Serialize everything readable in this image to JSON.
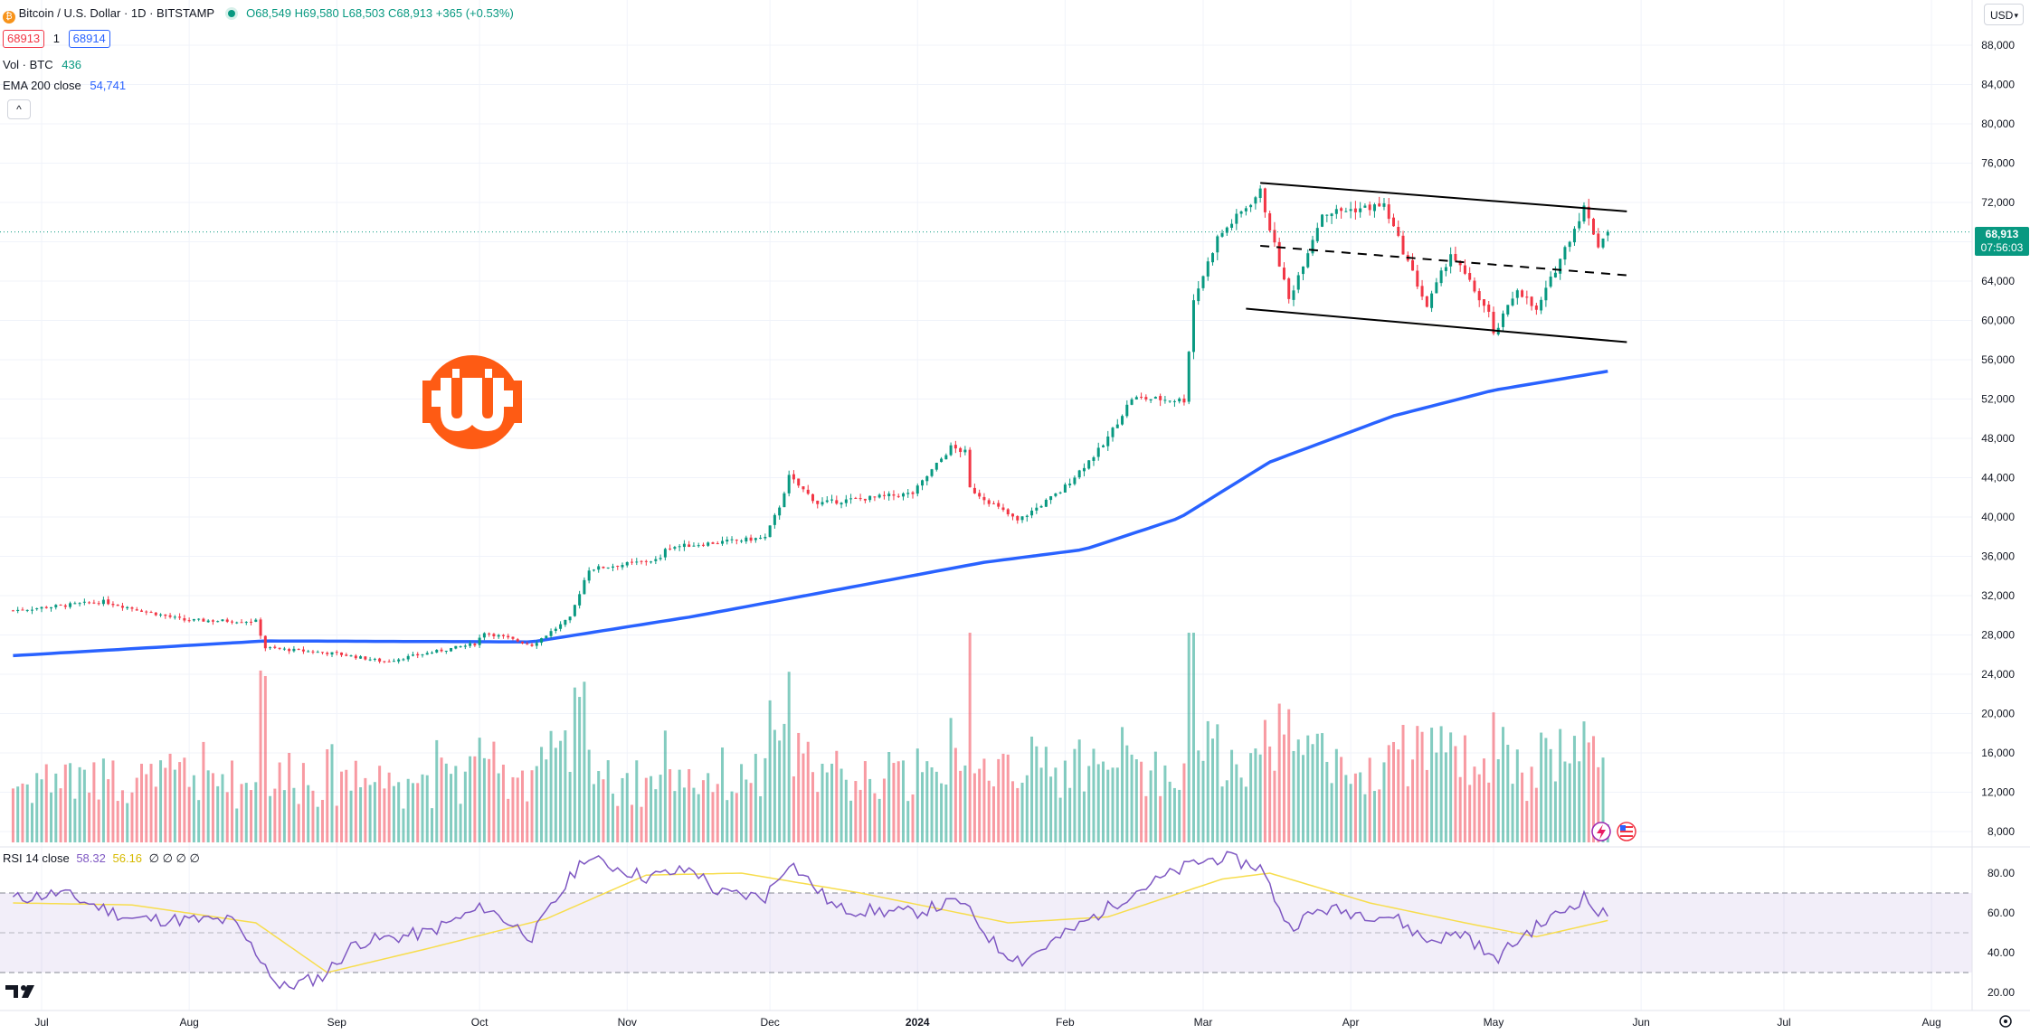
{
  "header": {
    "symbol_title": "Bitcoin / U.S. Dollar · 1D · BITSTAMP",
    "ohlc": {
      "o": "O68,549",
      "h": "H69,580",
      "l": "L68,503",
      "c": "C68,913",
      "change": "+365 (+0.53%)"
    },
    "bid": "68913",
    "spread": "1",
    "ask": "68914",
    "vol_label": "Vol · BTC",
    "vol_value": "436",
    "ema_label": "EMA 200 close",
    "ema_value": "54,741",
    "currency": "USD",
    "collapse_glyph": "^"
  },
  "rsi_legend": {
    "label": "RSI 14 close",
    "rsi_value": "58.32",
    "ma_value": "56.16",
    "extra": "∅ ∅ ∅ ∅"
  },
  "last_price": {
    "price": "68,913",
    "countdown": "07:56:03"
  },
  "colors": {
    "up": "#089981",
    "down": "#f23645",
    "ema": "#2962ff",
    "rsi": "#7e57c2",
    "rsi_ma": "#f7dd4d",
    "brand": "#f7931a",
    "logo": "#fe5b14"
  },
  "chart_data": {
    "type": "candlestick",
    "price_axis": {
      "ticks": [
        "88,000",
        "84,000",
        "80,000",
        "76,000",
        "72,000",
        "68,000",
        "64,000",
        "60,000",
        "56,000",
        "52,000",
        "48,000",
        "44,000",
        "40,000",
        "36,000",
        "32,000",
        "28,000",
        "24,000",
        "20,000",
        "16,000",
        "12,000",
        "8,000"
      ]
    },
    "rsi_axis": {
      "ticks": [
        "80.00",
        "60.00",
        "40.00",
        "20.00"
      ],
      "bands": [
        70,
        50,
        30
      ]
    },
    "time_axis": {
      "labels": [
        "Jul",
        "Aug",
        "Sep",
        "Oct",
        "Nov",
        "Dec",
        "2024",
        "Feb",
        "Mar",
        "Apr",
        "May",
        "Jun",
        "Jul",
        "Aug"
      ],
      "label_dates": [
        "2023-07-01",
        "2023-08-01",
        "2023-09-01",
        "2023-10-01",
        "2023-11-01",
        "2023-12-01",
        "2024-01-01",
        "2024-02-01",
        "2024-03-01",
        "2024-04-01",
        "2024-05-01",
        "2024-06-01",
        "2024-07-01",
        "2024-08-01"
      ]
    },
    "price_anchors": [
      [
        "2023-06-25",
        30400
      ],
      [
        "2023-07-14",
        31300
      ],
      [
        "2023-07-31",
        29400
      ],
      [
        "2023-08-15",
        29300
      ],
      [
        "2023-08-17",
        26600
      ],
      [
        "2023-09-01",
        26000
      ],
      [
        "2023-09-11",
        25200
      ],
      [
        "2023-09-30",
        27000
      ],
      [
        "2023-10-02",
        28200
      ],
      [
        "2023-10-12",
        26900
      ],
      [
        "2023-10-20",
        29600
      ],
      [
        "2023-10-23",
        33500
      ],
      [
        "2023-10-24",
        34600
      ],
      [
        "2023-11-08",
        35600
      ],
      [
        "2023-11-09",
        36800
      ],
      [
        "2023-11-30",
        37800
      ],
      [
        "2023-12-03",
        41000
      ],
      [
        "2023-12-05",
        44000
      ],
      [
        "2023-12-11",
        41300
      ],
      [
        "2023-12-31",
        42300
      ],
      [
        "2024-01-08",
        47000
      ],
      [
        "2024-01-11",
        46500
      ],
      [
        "2024-01-12",
        42800
      ],
      [
        "2024-01-22",
        39500
      ],
      [
        "2024-01-31",
        42500
      ],
      [
        "2024-02-09",
        47200
      ],
      [
        "2024-02-15",
        52000
      ],
      [
        "2024-02-26",
        51800
      ],
      [
        "2024-02-28",
        62000
      ],
      [
        "2024-03-04",
        68300
      ],
      [
        "2024-03-13",
        73000
      ],
      [
        "2024-03-19",
        62000
      ],
      [
        "2024-03-26",
        70800
      ],
      [
        "2024-04-08",
        71600
      ],
      [
        "2024-04-12",
        67000
      ],
      [
        "2024-04-17",
        61300
      ],
      [
        "2024-04-22",
        66800
      ],
      [
        "2024-04-30",
        60600
      ],
      [
        "2024-05-01",
        58300
      ],
      [
        "2024-05-06",
        63200
      ],
      [
        "2024-05-10",
        60800
      ],
      [
        "2024-05-15",
        66200
      ],
      [
        "2024-05-20",
        71400
      ],
      [
        "2024-05-23",
        67600
      ],
      [
        "2024-05-25",
        68913
      ]
    ],
    "ema200_anchors": [
      [
        "2023-06-25",
        25800
      ],
      [
        "2023-08-17",
        27300
      ],
      [
        "2023-10-12",
        27200
      ],
      [
        "2023-11-15",
        29800
      ],
      [
        "2023-12-15",
        32500
      ],
      [
        "2024-01-15",
        35300
      ],
      [
        "2024-02-05",
        36600
      ],
      [
        "2024-02-25",
        39800
      ],
      [
        "2024-03-15",
        45500
      ],
      [
        "2024-04-10",
        50200
      ],
      [
        "2024-05-01",
        52800
      ],
      [
        "2024-05-25",
        54741
      ]
    ],
    "rsi_anchors": [
      [
        "2023-06-25",
        67
      ],
      [
        "2023-07-05",
        70
      ],
      [
        "2023-07-20",
        57
      ],
      [
        "2023-08-10",
        56
      ],
      [
        "2023-08-17",
        34
      ],
      [
        "2023-08-20",
        22
      ],
      [
        "2023-08-29",
        28
      ],
      [
        "2023-09-05",
        45
      ],
      [
        "2023-09-20",
        50
      ],
      [
        "2023-10-02",
        63
      ],
      [
        "2023-10-12",
        48
      ],
      [
        "2023-10-23",
        88
      ],
      [
        "2023-11-05",
        78
      ],
      [
        "2023-11-15",
        82
      ],
      [
        "2023-11-20",
        70
      ],
      [
        "2023-11-30",
        68
      ],
      [
        "2023-12-05",
        86
      ],
      [
        "2023-12-15",
        62
      ],
      [
        "2023-12-31",
        60
      ],
      [
        "2024-01-10",
        66
      ],
      [
        "2024-01-18",
        42
      ],
      [
        "2024-01-23",
        36
      ],
      [
        "2024-02-05",
        55
      ],
      [
        "2024-02-15",
        70
      ],
      [
        "2024-02-28",
        85
      ],
      [
        "2024-03-05",
        88
      ],
      [
        "2024-03-13",
        83
      ],
      [
        "2024-03-19",
        53
      ],
      [
        "2024-03-26",
        62
      ],
      [
        "2024-04-10",
        58
      ],
      [
        "2024-04-17",
        46
      ],
      [
        "2024-04-25",
        50
      ],
      [
        "2024-05-01",
        36
      ],
      [
        "2024-05-08",
        50
      ],
      [
        "2024-05-15",
        60
      ],
      [
        "2024-05-20",
        68
      ],
      [
        "2024-05-23",
        60
      ],
      [
        "2024-05-25",
        58.32
      ]
    ],
    "rsi_ma_anchors": [
      [
        "2023-06-25",
        65
      ],
      [
        "2023-07-20",
        64
      ],
      [
        "2023-08-15",
        55
      ],
      [
        "2023-08-30",
        30
      ],
      [
        "2023-09-20",
        42
      ],
      [
        "2023-10-15",
        57
      ],
      [
        "2023-11-05",
        79
      ],
      [
        "2023-11-25",
        80
      ],
      [
        "2023-12-20",
        70
      ],
      [
        "2024-01-20",
        55
      ],
      [
        "2024-02-10",
        58
      ],
      [
        "2024-03-05",
        77
      ],
      [
        "2024-03-15",
        80
      ],
      [
        "2024-04-05",
        65
      ],
      [
        "2024-04-25",
        55
      ],
      [
        "2024-05-10",
        48
      ],
      [
        "2024-05-25",
        56.16
      ]
    ],
    "trend_channel": {
      "upper": [
        [
          "2024-03-13",
          73900
        ],
        [
          "2024-05-29",
          71000
        ]
      ],
      "middle": [
        [
          "2024-03-13",
          67500
        ],
        [
          "2024-05-29",
          64500
        ]
      ],
      "lower": [
        [
          "2024-03-10",
          61100
        ],
        [
          "2024-05-29",
          57700
        ]
      ]
    }
  }
}
